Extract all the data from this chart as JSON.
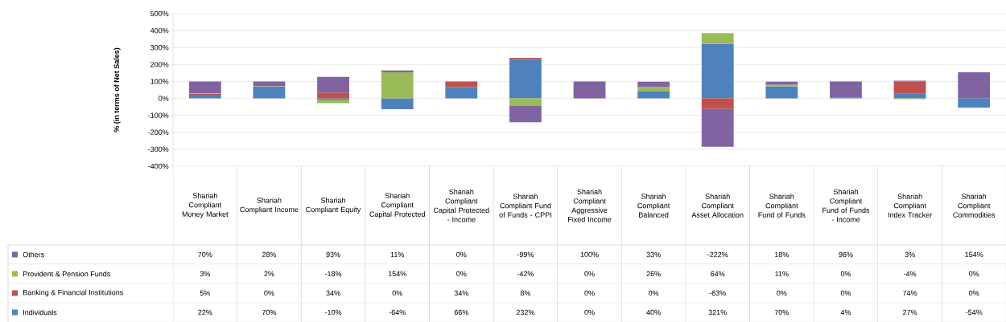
{
  "chart_data": {
    "type": "bar",
    "stacked": true,
    "ylabel": "% (in terms of Net Sales)",
    "categories": [
      "Shariah Compliant Money Market",
      "Shariah Compliant Income",
      "Shariah Compliant Equity",
      "Shariah Compliant Capital Protected",
      "Shariah Compliant Capital Protected - Income",
      "Shariah Compliant Fund of Funds - CPPI",
      "Shariah Compliant Aggressive Fixed Income",
      "Shariah Compliant Balanced",
      "Shariah Compliant Asset Allocation",
      "Shariah Compliant Fund of Funds",
      "Shariah Compliant Fund of Funds - Income",
      "Shariah Compliant Index Tracker",
      "Shariah Compliant Commodities"
    ],
    "series": [
      {
        "name": "Individuals",
        "color": "#4f81bd",
        "values": [
          22,
          70,
          -10,
          -64,
          66,
          232,
          0,
          40,
          321,
          70,
          4,
          27,
          -54
        ],
        "value_labels": [
          "22%",
          "70%",
          "-10%",
          "-64%",
          "66%",
          "232%",
          "0%",
          "40%",
          "321%",
          "70%",
          "4%",
          "27%",
          "-54%"
        ]
      },
      {
        "name": "Banking & Financial Institutions",
        "color": "#c0504d",
        "values": [
          5,
          0,
          34,
          0,
          34,
          8,
          0,
          0,
          -63,
          0,
          0,
          74,
          0
        ],
        "value_labels": [
          "5%",
          "0%",
          "34%",
          "0%",
          "34%",
          "8%",
          "0%",
          "0%",
          "-63%",
          "0%",
          "0%",
          "74%",
          "0%"
        ]
      },
      {
        "name": "Provident & Pension Funds",
        "color": "#9bbb59",
        "values": [
          3,
          2,
          -18,
          154,
          0,
          -42,
          0,
          26,
          64,
          11,
          0,
          -4,
          0
        ],
        "value_labels": [
          "3%",
          "2%",
          "-18%",
          "154%",
          "0%",
          "-42%",
          "0%",
          "26%",
          "64%",
          "11%",
          "0%",
          "-4%",
          "0%"
        ]
      },
      {
        "name": "Others",
        "color": "#8064a2",
        "values": [
          70,
          28,
          93,
          11,
          0,
          -99,
          100,
          33,
          -222,
          18,
          96,
          3,
          154
        ],
        "value_labels": [
          "70%",
          "28%",
          "93%",
          "11%",
          "0%",
          "-99%",
          "100%",
          "33%",
          "-222%",
          "18%",
          "96%",
          "3%",
          "154%"
        ]
      }
    ],
    "ylim": [
      -400,
      500
    ],
    "yticks": [
      {
        "value": -400,
        "label": "-400%"
      },
      {
        "value": -300,
        "label": "-300%"
      },
      {
        "value": -200,
        "label": "-200%"
      },
      {
        "value": -100,
        "label": "-100%"
      },
      {
        "value": 0,
        "label": "0%"
      },
      {
        "value": 100,
        "label": "100%"
      },
      {
        "value": 200,
        "label": "200%"
      },
      {
        "value": 300,
        "label": "300%"
      },
      {
        "value": 400,
        "label": "400%"
      },
      {
        "value": 500,
        "label": "500%"
      }
    ],
    "grid": "y",
    "legend": "left"
  }
}
